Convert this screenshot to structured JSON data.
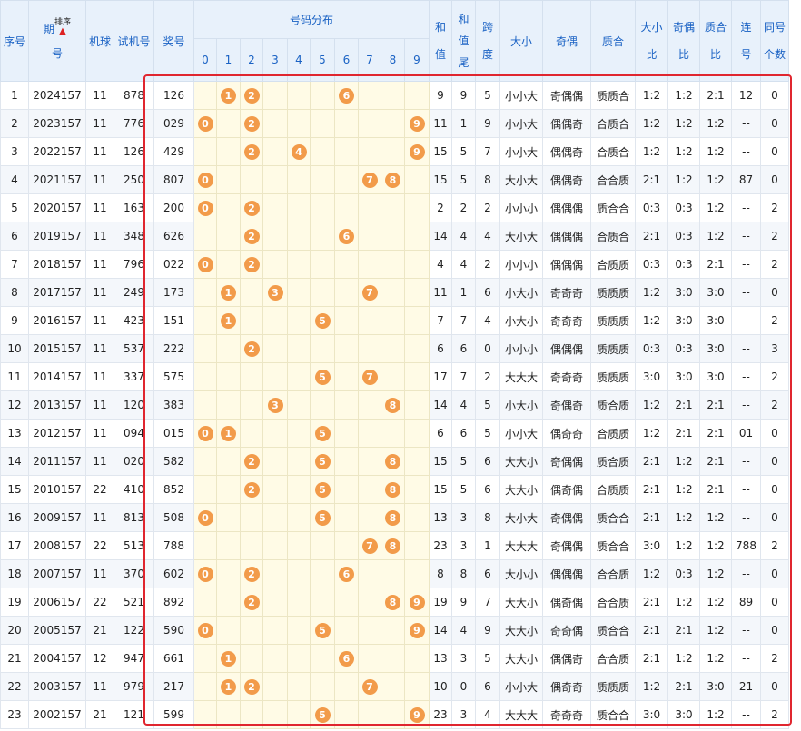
{
  "headers": {
    "seq": "序号",
    "period_a": "期",
    "period_b": "号",
    "sort": "排序",
    "machine": "机球",
    "trial": "试机号",
    "prize": "奖号",
    "dist": "号码分布",
    "digits": [
      "0",
      "1",
      "2",
      "3",
      "4",
      "5",
      "6",
      "7",
      "8",
      "9"
    ],
    "sum_a": "和",
    "sum_b": "值",
    "tail_a": "和",
    "tail_b": "值",
    "tail_c": "尾",
    "span_a": "跨",
    "span_b": "度",
    "size": "大小",
    "parity": "奇偶",
    "prime": "质合",
    "size_ratio_a": "大小",
    "size_ratio_b": "比",
    "parity_ratio_a": "奇偶",
    "parity_ratio_b": "比",
    "prime_ratio_a": "质合",
    "prime_ratio_b": "比",
    "consec_a": "连",
    "consec_b": "号",
    "same_a": "同号",
    "same_b": "个数"
  },
  "colors": {
    "header_bg": "#e8f1fb",
    "header_text": "#1a62c4",
    "ball": "#f29b4a",
    "dist_bg": "#fffbe6",
    "frame": "#e0262f"
  },
  "rows": [
    {
      "seq": "1",
      "period": "2024157",
      "machine": "11",
      "trial": "878",
      "prize": "126",
      "sum": "9",
      "tail": "9",
      "span": "5",
      "size": "小小大",
      "parity": "奇偶偶",
      "prime": "质质合",
      "sr": "1:2",
      "pr": "1:2",
      "qr": "2:1",
      "consec": "12",
      "same": "0"
    },
    {
      "seq": "2",
      "period": "2023157",
      "machine": "11",
      "trial": "776",
      "prize": "029",
      "sum": "11",
      "tail": "1",
      "span": "9",
      "size": "小小大",
      "parity": "偶偶奇",
      "prime": "合质合",
      "sr": "1:2",
      "pr": "1:2",
      "qr": "1:2",
      "consec": "--",
      "same": "0"
    },
    {
      "seq": "3",
      "period": "2022157",
      "machine": "11",
      "trial": "126",
      "prize": "429",
      "sum": "15",
      "tail": "5",
      "span": "7",
      "size": "小小大",
      "parity": "偶偶奇",
      "prime": "合质合",
      "sr": "1:2",
      "pr": "1:2",
      "qr": "1:2",
      "consec": "--",
      "same": "0"
    },
    {
      "seq": "4",
      "period": "2021157",
      "machine": "11",
      "trial": "250",
      "prize": "807",
      "sum": "15",
      "tail": "5",
      "span": "8",
      "size": "大小大",
      "parity": "偶偶奇",
      "prime": "合合质",
      "sr": "2:1",
      "pr": "1:2",
      "qr": "1:2",
      "consec": "87",
      "same": "0"
    },
    {
      "seq": "5",
      "period": "2020157",
      "machine": "11",
      "trial": "163",
      "prize": "200",
      "sum": "2",
      "tail": "2",
      "span": "2",
      "size": "小小小",
      "parity": "偶偶偶",
      "prime": "质合合",
      "sr": "0:3",
      "pr": "0:3",
      "qr": "1:2",
      "consec": "--",
      "same": "2"
    },
    {
      "seq": "6",
      "period": "2019157",
      "machine": "11",
      "trial": "348",
      "prize": "626",
      "sum": "14",
      "tail": "4",
      "span": "4",
      "size": "大小大",
      "parity": "偶偶偶",
      "prime": "合质合",
      "sr": "2:1",
      "pr": "0:3",
      "qr": "1:2",
      "consec": "--",
      "same": "2"
    },
    {
      "seq": "7",
      "period": "2018157",
      "machine": "11",
      "trial": "796",
      "prize": "022",
      "sum": "4",
      "tail": "4",
      "span": "2",
      "size": "小小小",
      "parity": "偶偶偶",
      "prime": "合质质",
      "sr": "0:3",
      "pr": "0:3",
      "qr": "2:1",
      "consec": "--",
      "same": "2"
    },
    {
      "seq": "8",
      "period": "2017157",
      "machine": "11",
      "trial": "249",
      "prize": "173",
      "sum": "11",
      "tail": "1",
      "span": "6",
      "size": "小大小",
      "parity": "奇奇奇",
      "prime": "质质质",
      "sr": "1:2",
      "pr": "3:0",
      "qr": "3:0",
      "consec": "--",
      "same": "0"
    },
    {
      "seq": "9",
      "period": "2016157",
      "machine": "11",
      "trial": "423",
      "prize": "151",
      "sum": "7",
      "tail": "7",
      "span": "4",
      "size": "小大小",
      "parity": "奇奇奇",
      "prime": "质质质",
      "sr": "1:2",
      "pr": "3:0",
      "qr": "3:0",
      "consec": "--",
      "same": "2"
    },
    {
      "seq": "10",
      "period": "2015157",
      "machine": "11",
      "trial": "537",
      "prize": "222",
      "sum": "6",
      "tail": "6",
      "span": "0",
      "size": "小小小",
      "parity": "偶偶偶",
      "prime": "质质质",
      "sr": "0:3",
      "pr": "0:3",
      "qr": "3:0",
      "consec": "--",
      "same": "3"
    },
    {
      "seq": "11",
      "period": "2014157",
      "machine": "11",
      "trial": "337",
      "prize": "575",
      "sum": "17",
      "tail": "7",
      "span": "2",
      "size": "大大大",
      "parity": "奇奇奇",
      "prime": "质质质",
      "sr": "3:0",
      "pr": "3:0",
      "qr": "3:0",
      "consec": "--",
      "same": "2"
    },
    {
      "seq": "12",
      "period": "2013157",
      "machine": "11",
      "trial": "120",
      "prize": "383",
      "sum": "14",
      "tail": "4",
      "span": "5",
      "size": "小大小",
      "parity": "奇偶奇",
      "prime": "质合质",
      "sr": "1:2",
      "pr": "2:1",
      "qr": "2:1",
      "consec": "--",
      "same": "2"
    },
    {
      "seq": "13",
      "period": "2012157",
      "machine": "11",
      "trial": "094",
      "prize": "015",
      "sum": "6",
      "tail": "6",
      "span": "5",
      "size": "小小大",
      "parity": "偶奇奇",
      "prime": "合质质",
      "sr": "1:2",
      "pr": "2:1",
      "qr": "2:1",
      "consec": "01",
      "same": "0"
    },
    {
      "seq": "14",
      "period": "2011157",
      "machine": "11",
      "trial": "020",
      "prize": "582",
      "sum": "15",
      "tail": "5",
      "span": "6",
      "size": "大大小",
      "parity": "奇偶偶",
      "prime": "质合质",
      "sr": "2:1",
      "pr": "1:2",
      "qr": "2:1",
      "consec": "--",
      "same": "0"
    },
    {
      "seq": "15",
      "period": "2010157",
      "machine": "22",
      "trial": "410",
      "prize": "852",
      "sum": "15",
      "tail": "5",
      "span": "6",
      "size": "大大小",
      "parity": "偶奇偶",
      "prime": "合质质",
      "sr": "2:1",
      "pr": "1:2",
      "qr": "2:1",
      "consec": "--",
      "same": "0"
    },
    {
      "seq": "16",
      "period": "2009157",
      "machine": "11",
      "trial": "813",
      "prize": "508",
      "sum": "13",
      "tail": "3",
      "span": "8",
      "size": "大小大",
      "parity": "奇偶偶",
      "prime": "质合合",
      "sr": "2:1",
      "pr": "1:2",
      "qr": "1:2",
      "consec": "--",
      "same": "0"
    },
    {
      "seq": "17",
      "period": "2008157",
      "machine": "22",
      "trial": "513",
      "prize": "788",
      "sum": "23",
      "tail": "3",
      "span": "1",
      "size": "大大大",
      "parity": "奇偶偶",
      "prime": "质合合",
      "sr": "3:0",
      "pr": "1:2",
      "qr": "1:2",
      "consec": "788",
      "same": "2"
    },
    {
      "seq": "18",
      "period": "2007157",
      "machine": "11",
      "trial": "370",
      "prize": "602",
      "sum": "8",
      "tail": "8",
      "span": "6",
      "size": "大小小",
      "parity": "偶偶偶",
      "prime": "合合质",
      "sr": "1:2",
      "pr": "0:3",
      "qr": "1:2",
      "consec": "--",
      "same": "0"
    },
    {
      "seq": "19",
      "period": "2006157",
      "machine": "22",
      "trial": "521",
      "prize": "892",
      "sum": "19",
      "tail": "9",
      "span": "7",
      "size": "大大小",
      "parity": "偶奇偶",
      "prime": "合合质",
      "sr": "2:1",
      "pr": "1:2",
      "qr": "1:2",
      "consec": "89",
      "same": "0"
    },
    {
      "seq": "20",
      "period": "2005157",
      "machine": "21",
      "trial": "122",
      "prize": "590",
      "sum": "14",
      "tail": "4",
      "span": "9",
      "size": "大大小",
      "parity": "奇奇偶",
      "prime": "质合合",
      "sr": "2:1",
      "pr": "2:1",
      "qr": "1:2",
      "consec": "--",
      "same": "0"
    },
    {
      "seq": "21",
      "period": "2004157",
      "machine": "12",
      "trial": "947",
      "prize": "661",
      "sum": "13",
      "tail": "3",
      "span": "5",
      "size": "大大小",
      "parity": "偶偶奇",
      "prime": "合合质",
      "sr": "2:1",
      "pr": "1:2",
      "qr": "1:2",
      "consec": "--",
      "same": "2"
    },
    {
      "seq": "22",
      "period": "2003157",
      "machine": "11",
      "trial": "979",
      "prize": "217",
      "sum": "10",
      "tail": "0",
      "span": "6",
      "size": "小小大",
      "parity": "偶奇奇",
      "prime": "质质质",
      "sr": "1:2",
      "pr": "2:1",
      "qr": "3:0",
      "consec": "21",
      "same": "0"
    },
    {
      "seq": "23",
      "period": "2002157",
      "machine": "21",
      "trial": "121",
      "prize": "599",
      "sum": "23",
      "tail": "3",
      "span": "4",
      "size": "大大大",
      "parity": "奇奇奇",
      "prime": "质合合",
      "sr": "3:0",
      "pr": "3:0",
      "qr": "1:2",
      "consec": "--",
      "same": "2"
    }
  ]
}
